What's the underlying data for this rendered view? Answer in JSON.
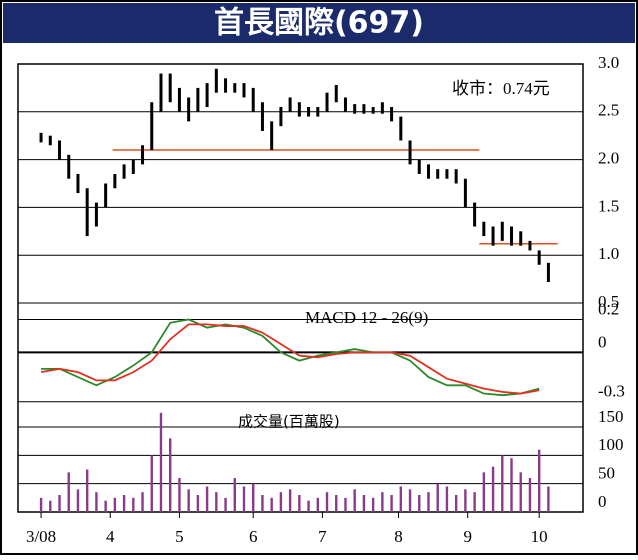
{
  "title": "首長國際(697)",
  "chart_data": [
    {
      "type": "ohlc",
      "annotation": "收市：0.74元",
      "color": "#000000",
      "xlim": [
        -10,
        235
      ],
      "ylim": [
        0.5,
        3.0
      ],
      "yticks": [
        {
          "value": 3.0,
          "label": "3.0"
        },
        2.5,
        {
          "value": 2.0,
          "label": "2.0"
        },
        1.5,
        {
          "value": 1.0,
          "label": "1.0"
        },
        0.5
      ],
      "x": [
        0,
        4,
        8,
        12,
        16,
        20,
        24,
        28,
        32,
        36,
        40,
        44,
        48,
        52,
        56,
        60,
        64,
        68,
        72,
        76,
        80,
        84,
        88,
        92,
        96,
        100,
        104,
        108,
        112,
        116,
        120,
        124,
        128,
        132,
        136,
        140,
        144,
        148,
        152,
        156,
        160,
        164,
        168,
        172,
        176,
        180,
        184,
        188,
        192,
        196,
        200,
        204,
        208,
        212,
        216,
        220
      ],
      "high": [
        2.28,
        2.25,
        2.2,
        2.05,
        1.85,
        1.7,
        1.55,
        1.75,
        1.85,
        1.95,
        2.0,
        2.15,
        2.6,
        2.9,
        2.9,
        2.75,
        2.65,
        2.75,
        2.8,
        2.95,
        2.85,
        2.8,
        2.8,
        2.75,
        2.6,
        2.4,
        2.55,
        2.65,
        2.6,
        2.55,
        2.55,
        2.7,
        2.78,
        2.65,
        2.58,
        2.58,
        2.55,
        2.6,
        2.55,
        2.45,
        2.2,
        2.0,
        1.95,
        1.9,
        1.9,
        1.9,
        1.8,
        1.55,
        1.35,
        1.3,
        1.35,
        1.3,
        1.25,
        1.15,
        1.05,
        0.92
      ],
      "low": [
        2.18,
        2.15,
        2.0,
        1.8,
        1.65,
        1.2,
        1.3,
        1.5,
        1.7,
        1.8,
        1.85,
        1.95,
        2.1,
        2.5,
        2.6,
        2.5,
        2.4,
        2.5,
        2.55,
        2.7,
        2.7,
        2.7,
        2.65,
        2.5,
        2.3,
        2.1,
        2.35,
        2.5,
        2.45,
        2.45,
        2.45,
        2.5,
        2.6,
        2.5,
        2.48,
        2.48,
        2.48,
        2.48,
        2.4,
        2.2,
        1.95,
        1.85,
        1.8,
        1.8,
        1.8,
        1.75,
        1.5,
        1.3,
        1.2,
        1.1,
        1.15,
        1.1,
        1.1,
        1.05,
        0.9,
        0.72
      ],
      "levels": [
        {
          "y": 2.1,
          "x": [
            31,
            190
          ],
          "color": "#e0501e"
        },
        {
          "y": 1.12,
          "x": [
            190,
            224
          ],
          "color": "#e0501e"
        }
      ]
    },
    {
      "type": "line",
      "label": "MACD 12 - 26(9)",
      "xlim": [
        -10,
        235
      ],
      "ylim": [
        -0.35,
        0.3
      ],
      "yticks": [
        0.2,
        0,
        -0.3
      ],
      "x": [
        0,
        8,
        16,
        24,
        32,
        40,
        48,
        56,
        64,
        72,
        80,
        88,
        96,
        104,
        112,
        120,
        128,
        136,
        144,
        152,
        160,
        168,
        176,
        184,
        192,
        200,
        208,
        216
      ],
      "series": [
        {
          "color": "#2a8a2a",
          "values": [
            -0.1,
            -0.1,
            -0.15,
            -0.2,
            -0.15,
            -0.08,
            0.0,
            0.18,
            0.2,
            0.15,
            0.17,
            0.15,
            0.1,
            0.0,
            -0.05,
            -0.02,
            0.0,
            0.02,
            0.0,
            0.0,
            -0.05,
            -0.15,
            -0.2,
            -0.2,
            -0.25,
            -0.26,
            -0.25,
            -0.22
          ]
        },
        {
          "color": "#e03020",
          "values": [
            -0.12,
            -0.1,
            -0.12,
            -0.17,
            -0.17,
            -0.12,
            -0.05,
            0.08,
            0.17,
            0.17,
            0.16,
            0.16,
            0.12,
            0.05,
            -0.02,
            -0.03,
            -0.01,
            0.0,
            0.0,
            0.0,
            -0.02,
            -0.09,
            -0.16,
            -0.19,
            -0.22,
            -0.24,
            -0.25,
            -0.23
          ]
        }
      ]
    },
    {
      "type": "bar",
      "label": "成交量(百萬股)",
      "color": "#8a3a8a",
      "xlim": [
        -10,
        235
      ],
      "ylim": [
        0,
        180
      ],
      "yticks": [
        150,
        100,
        50,
        0
      ],
      "xticks": [
        {
          "value": 0,
          "label": "3/08"
        },
        {
          "value": 30,
          "label": "4"
        },
        {
          "value": 60,
          "label": "5"
        },
        {
          "value": 92,
          "label": "6"
        },
        {
          "value": 122,
          "label": "7"
        },
        {
          "value": 155,
          "label": "8"
        },
        {
          "value": 185,
          "label": "9"
        },
        {
          "value": 216,
          "label": "10"
        }
      ],
      "x": [
        0,
        4,
        8,
        12,
        16,
        20,
        24,
        28,
        32,
        36,
        40,
        44,
        48,
        52,
        56,
        60,
        64,
        68,
        72,
        76,
        80,
        84,
        88,
        92,
        96,
        100,
        104,
        108,
        112,
        116,
        120,
        124,
        128,
        132,
        136,
        140,
        144,
        148,
        152,
        156,
        160,
        164,
        168,
        172,
        176,
        180,
        184,
        188,
        192,
        196,
        200,
        204,
        208,
        212,
        216,
        220
      ],
      "values": [
        25,
        20,
        30,
        70,
        40,
        75,
        35,
        20,
        25,
        30,
        25,
        35,
        100,
        175,
        130,
        60,
        40,
        30,
        45,
        35,
        25,
        60,
        45,
        50,
        30,
        25,
        35,
        40,
        30,
        20,
        25,
        35,
        30,
        25,
        40,
        30,
        25,
        35,
        30,
        45,
        40,
        30,
        35,
        50,
        45,
        30,
        40,
        35,
        70,
        80,
        100,
        95,
        70,
        60,
        110,
        45
      ]
    }
  ]
}
